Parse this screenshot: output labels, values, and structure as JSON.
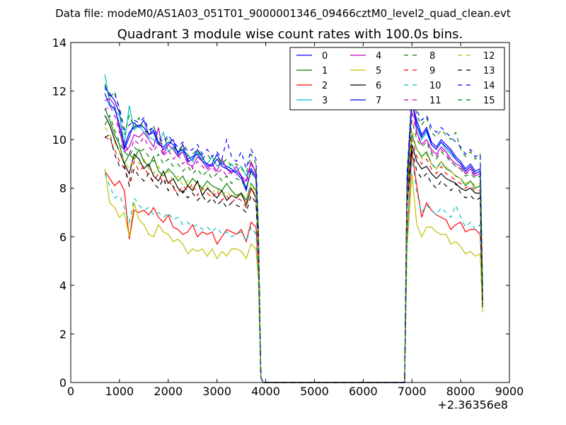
{
  "chart_data": {
    "type": "line",
    "supertitle": "Data file: modeM0/AS1A03_051T01_9000001346_09466cztM0_level2_quad_clean.evt",
    "title": "Quadrant 3 module wise count rates with 100.0s bins.",
    "xlabel": "",
    "ylabel": "",
    "x_offset_label": "+2.36356e8",
    "xlim": [
      0,
      9000
    ],
    "ylim": [
      0,
      14
    ],
    "x_ticks": [
      "0",
      "1000",
      "2000",
      "3000",
      "4000",
      "5000",
      "6000",
      "7000",
      "8000",
      "9000"
    ],
    "y_ticks": [
      "0",
      "2",
      "4",
      "6",
      "8",
      "10",
      "12",
      "14"
    ],
    "grid": false,
    "legend_position": "top-right",
    "legend_columns": 4,
    "x": [
      700,
      800,
      900,
      1000,
      1100,
      1200,
      1300,
      1400,
      1500,
      1600,
      1700,
      1800,
      1900,
      2000,
      2100,
      2200,
      2300,
      2400,
      2500,
      2600,
      2700,
      2800,
      2900,
      3000,
      3100,
      3200,
      3300,
      3400,
      3500,
      3600,
      3700,
      3800,
      3850,
      3900,
      3950,
      6850,
      6900,
      7000,
      7100,
      7200,
      7300,
      7400,
      7500,
      7600,
      7700,
      7800,
      7900,
      8000,
      8100,
      8200,
      8300,
      8400,
      8450
    ],
    "series": [
      {
        "name": "0",
        "color": "#0000ff",
        "dash": "solid",
        "values": [
          12.1,
          11.9,
          11.6,
          11.1,
          9.6,
          10.1,
          10.7,
          10.5,
          10.8,
          10.2,
          10.4,
          9.9,
          9.6,
          9.8,
          10.0,
          9.4,
          9.8,
          9.1,
          9.2,
          9.6,
          9.3,
          8.9,
          9.0,
          9.4,
          9.0,
          8.9,
          8.8,
          8.6,
          8.4,
          7.9,
          8.8,
          8.5,
          6.0,
          0.2,
          0.0,
          0.0,
          8.0,
          11.5,
          10.8,
          10.2,
          10.5,
          9.9,
          9.7,
          10.0,
          9.8,
          9.6,
          9.3,
          9.1,
          8.8,
          9.0,
          8.7,
          8.8,
          3.5
        ]
      },
      {
        "name": "1",
        "color": "#008000",
        "dash": "solid",
        "values": [
          11.3,
          10.8,
          10.2,
          9.8,
          9.0,
          9.4,
          9.2,
          9.6,
          9.1,
          8.9,
          9.3,
          8.7,
          8.5,
          8.8,
          8.6,
          8.3,
          8.5,
          8.1,
          8.4,
          8.2,
          8.0,
          8.3,
          8.1,
          8.0,
          7.9,
          8.2,
          7.9,
          7.7,
          7.8,
          7.5,
          8.2,
          7.9,
          5.8,
          0.2,
          0.0,
          0.0,
          7.6,
          10.2,
          9.6,
          9.3,
          9.5,
          9.0,
          8.8,
          9.1,
          8.8,
          8.7,
          8.5,
          8.4,
          8.1,
          8.3,
          8.0,
          8.1,
          3.3
        ]
      },
      {
        "name": "2",
        "color": "#ff0000",
        "dash": "solid",
        "values": [
          8.7,
          8.4,
          8.1,
          8.3,
          7.9,
          5.9,
          7.1,
          7.0,
          7.1,
          6.9,
          7.2,
          6.8,
          6.6,
          6.9,
          6.4,
          6.3,
          6.1,
          6.2,
          6.5,
          6.0,
          6.2,
          6.1,
          6.2,
          5.7,
          6.0,
          6.3,
          6.2,
          6.1,
          6.3,
          5.8,
          6.6,
          6.4,
          4.7,
          0.2,
          0.0,
          0.0,
          6.0,
          9.5,
          8.1,
          6.8,
          7.4,
          7.1,
          6.9,
          6.8,
          6.7,
          6.3,
          6.5,
          6.6,
          6.2,
          6.3,
          6.3,
          6.1,
          3.7
        ]
      },
      {
        "name": "3",
        "color": "#00bfbf",
        "dash": "solid",
        "values": [
          12.7,
          11.5,
          11.2,
          11.0,
          9.8,
          11.4,
          10.4,
          10.6,
          10.3,
          10.1,
          10.0,
          9.8,
          10.3,
          9.5,
          9.7,
          9.3,
          9.6,
          9.4,
          9.1,
          9.5,
          9.2,
          9.0,
          9.3,
          8.9,
          9.1,
          8.8,
          9.0,
          8.7,
          8.9,
          8.5,
          9.0,
          8.7,
          6.1,
          0.2,
          0.0,
          0.0,
          8.2,
          11.6,
          10.5,
          10.0,
          10.3,
          9.8,
          9.6,
          9.9,
          9.6,
          9.4,
          9.2,
          9.0,
          8.7,
          8.9,
          8.6,
          8.7,
          3.6
        ]
      },
      {
        "name": "4",
        "color": "#bf00bf",
        "dash": "solid",
        "values": [
          11.6,
          11.7,
          11.4,
          10.4,
          9.5,
          9.7,
          10.2,
          10.1,
          10.3,
          10.0,
          9.7,
          10.5,
          9.4,
          9.8,
          9.6,
          9.3,
          9.5,
          9.0,
          8.9,
          9.3,
          9.1,
          8.8,
          9.0,
          8.7,
          9.2,
          8.8,
          8.6,
          8.9,
          8.5,
          8.3,
          9.1,
          8.6,
          5.9,
          0.2,
          0.0,
          0.0,
          7.8,
          11.7,
          10.3,
          9.8,
          10.0,
          9.6,
          9.4,
          9.7,
          9.5,
          9.2,
          9.0,
          8.9,
          8.6,
          8.8,
          8.5,
          8.6,
          3.4
        ]
      },
      {
        "name": "5",
        "color": "#bfbf00",
        "dash": "solid",
        "values": [
          8.8,
          7.4,
          7.2,
          6.8,
          7.0,
          6.0,
          7.4,
          6.7,
          6.5,
          6.1,
          6.0,
          6.5,
          6.2,
          6.1,
          5.8,
          5.9,
          5.7,
          5.3,
          5.5,
          5.4,
          5.5,
          5.2,
          5.5,
          5.1,
          5.4,
          5.2,
          5.5,
          5.5,
          5.4,
          5.1,
          5.7,
          5.5,
          4.2,
          0.2,
          0.0,
          0.0,
          5.5,
          8.6,
          6.5,
          6.0,
          6.4,
          6.4,
          6.2,
          6.1,
          6.1,
          5.7,
          5.8,
          5.6,
          5.3,
          5.4,
          5.2,
          5.3,
          2.9
        ]
      },
      {
        "name": "6",
        "color": "#000000",
        "dash": "solid",
        "values": [
          11.0,
          10.6,
          10.0,
          9.5,
          9.0,
          8.6,
          9.4,
          9.2,
          8.8,
          9.0,
          8.5,
          8.3,
          8.7,
          8.2,
          8.4,
          8.0,
          7.8,
          8.1,
          7.9,
          8.3,
          7.7,
          8.0,
          7.8,
          7.6,
          7.9,
          7.5,
          7.7,
          7.6,
          7.8,
          7.3,
          8.0,
          7.6,
          5.5,
          0.2,
          0.0,
          0.0,
          7.3,
          9.8,
          9.1,
          8.8,
          8.9,
          8.6,
          8.4,
          8.6,
          8.4,
          8.3,
          8.2,
          8.0,
          7.9,
          8.0,
          7.8,
          7.8,
          3.2
        ]
      },
      {
        "name": "7",
        "color": "#0000ff",
        "dash": "solid",
        "values": [
          11.9,
          11.4,
          11.3,
          10.6,
          9.7,
          10.3,
          10.5,
          10.6,
          10.5,
          10.2,
          10.3,
          9.8,
          9.7,
          9.9,
          9.8,
          9.5,
          9.6,
          9.2,
          9.3,
          9.4,
          9.1,
          9.0,
          8.9,
          9.2,
          8.9,
          8.8,
          8.7,
          8.7,
          8.5,
          8.0,
          8.7,
          8.4,
          6.0,
          0.2,
          0.0,
          0.0,
          8.1,
          11.6,
          10.6,
          10.1,
          10.4,
          9.8,
          9.6,
          9.9,
          9.7,
          9.5,
          9.2,
          9.0,
          8.7,
          8.9,
          8.6,
          8.7,
          3.5
        ]
      },
      {
        "name": "8",
        "color": "#008000",
        "dash": "dash",
        "values": [
          12.3,
          11.7,
          12.0,
          11.2,
          10.2,
          11.0,
          10.5,
          10.9,
          10.4,
          10.2,
          10.6,
          9.9,
          9.8,
          10.1,
          9.7,
          9.5,
          9.8,
          9.3,
          9.4,
          9.6,
          9.2,
          9.4,
          9.1,
          9.3,
          9.0,
          9.2,
          8.9,
          9.0,
          8.8,
          8.6,
          9.4,
          9.0,
          6.3,
          0.2,
          0.0,
          0.0,
          8.5,
          12.1,
          11.0,
          10.6,
          10.9,
          10.3,
          10.1,
          10.4,
          10.2,
          10.0,
          10.3,
          9.6,
          9.3,
          9.5,
          9.2,
          9.4,
          3.9
        ]
      },
      {
        "name": "9",
        "color": "#ff0000",
        "dash": "dash",
        "values": [
          10.1,
          10.0,
          9.6,
          9.1,
          8.8,
          8.3,
          9.1,
          8.7,
          8.9,
          8.5,
          8.3,
          8.6,
          8.2,
          8.4,
          8.0,
          7.8,
          8.1,
          7.9,
          8.2,
          7.7,
          8.0,
          7.8,
          7.6,
          7.9,
          7.5,
          7.7,
          7.4,
          7.6,
          7.5,
          7.2,
          8.0,
          7.7,
          5.6,
          0.2,
          0.0,
          0.0,
          7.4,
          10.0,
          9.3,
          9.0,
          9.2,
          8.8,
          8.6,
          8.9,
          8.6,
          8.5,
          8.3,
          8.2,
          8.0,
          8.1,
          7.9,
          7.9,
          3.3
        ]
      },
      {
        "name": "10",
        "color": "#00bfbf",
        "dash": "dash",
        "values": [
          8.6,
          8.1,
          7.6,
          7.7,
          7.2,
          6.6,
          7.6,
          7.3,
          7.1,
          7.2,
          6.9,
          7.0,
          6.8,
          7.0,
          6.7,
          6.8,
          6.5,
          6.6,
          6.4,
          6.5,
          6.3,
          6.4,
          6.2,
          6.4,
          6.1,
          6.2,
          6.0,
          6.1,
          6.2,
          5.8,
          6.4,
          6.1,
          4.5,
          0.2,
          0.0,
          0.0,
          6.0,
          9.3,
          7.8,
          7.0,
          7.3,
          7.1,
          6.9,
          7.2,
          7.0,
          6.8,
          7.3,
          6.8,
          6.4,
          6.6,
          6.3,
          6.5,
          3.6
        ]
      },
      {
        "name": "11",
        "color": "#bf00bf",
        "dash": "dash",
        "values": [
          11.2,
          11.4,
          11.0,
          10.3,
          9.9,
          9.4,
          10.0,
          9.8,
          10.1,
          9.7,
          9.5,
          9.9,
          9.3,
          9.6,
          9.2,
          9.4,
          9.0,
          9.2,
          8.8,
          9.1,
          8.9,
          8.7,
          8.9,
          8.6,
          8.8,
          8.5,
          8.7,
          8.6,
          8.4,
          8.2,
          9.0,
          8.6,
          6.0,
          0.2,
          0.0,
          0.0,
          7.9,
          11.2,
          10.2,
          9.8,
          10.0,
          9.5,
          9.3,
          9.6,
          9.4,
          9.1,
          8.9,
          8.8,
          8.6,
          8.7,
          8.5,
          8.6,
          3.4
        ]
      },
      {
        "name": "12",
        "color": "#bfbf00",
        "dash": "dash",
        "values": [
          10.5,
          10.2,
          9.9,
          9.5,
          9.1,
          8.8,
          9.3,
          9.0,
          9.2,
          8.8,
          8.6,
          8.9,
          8.5,
          8.7,
          8.3,
          8.5,
          8.1,
          8.3,
          8.0,
          8.2,
          7.9,
          8.1,
          7.8,
          8.0,
          7.7,
          7.9,
          7.6,
          7.8,
          7.7,
          7.4,
          8.2,
          7.8,
          5.7,
          0.2,
          0.0,
          0.0,
          7.5,
          10.4,
          9.6,
          9.2,
          9.4,
          9.0,
          8.8,
          9.1,
          8.9,
          8.7,
          8.5,
          8.4,
          8.2,
          8.3,
          8.1,
          8.2,
          3.3
        ]
      },
      {
        "name": "13",
        "color": "#000000",
        "dash": "dash",
        "values": [
          10.1,
          10.2,
          9.4,
          8.9,
          8.9,
          8.1,
          8.8,
          8.5,
          8.3,
          8.6,
          8.2,
          8.0,
          8.4,
          7.9,
          8.1,
          7.7,
          7.9,
          7.6,
          7.8,
          7.5,
          7.7,
          7.4,
          7.6,
          7.3,
          7.5,
          7.2,
          7.4,
          7.3,
          7.2,
          7.0,
          7.7,
          7.4,
          5.4,
          0.2,
          0.0,
          0.0,
          7.2,
          9.6,
          8.7,
          8.4,
          8.6,
          8.2,
          8.0,
          8.3,
          8.1,
          7.9,
          8.2,
          7.8,
          7.6,
          7.7,
          7.5,
          7.6,
          3.1
        ]
      },
      {
        "name": "14",
        "color": "#0000ff",
        "dash": "dash",
        "values": [
          12.2,
          11.8,
          11.9,
          11.3,
          10.4,
          10.6,
          10.8,
          10.7,
          10.9,
          10.4,
          10.5,
          10.1,
          9.9,
          10.2,
          9.9,
          9.7,
          9.9,
          9.5,
          9.6,
          9.8,
          9.4,
          9.6,
          9.3,
          9.5,
          9.2,
          10.0,
          9.3,
          9.1,
          9.5,
          8.8,
          9.6,
          9.2,
          6.4,
          0.2,
          0.0,
          0.0,
          8.6,
          11.8,
          11.2,
          10.8,
          11.0,
          10.5,
          10.3,
          10.5,
          10.3,
          10.1,
          9.9,
          9.7,
          9.4,
          9.6,
          9.3,
          9.4,
          3.9
        ]
      },
      {
        "name": "15",
        "color": "#008000",
        "dash": "dash",
        "values": [
          10.6,
          11.0,
          10.4,
          9.9,
          9.5,
          9.3,
          9.7,
          9.5,
          9.6,
          9.3,
          9.1,
          9.4,
          9.0,
          9.2,
          8.9,
          9.0,
          8.7,
          8.9,
          8.6,
          8.8,
          8.5,
          8.7,
          8.4,
          8.6,
          8.3,
          8.5,
          8.2,
          8.4,
          8.3,
          8.0,
          8.7,
          8.3,
          5.9,
          0.2,
          0.0,
          0.0,
          7.8,
          10.8,
          10.0,
          9.7,
          9.9,
          9.4,
          9.2,
          9.5,
          9.3,
          9.1,
          8.9,
          8.8,
          8.5,
          8.6,
          8.4,
          8.5,
          3.4
        ]
      }
    ]
  }
}
